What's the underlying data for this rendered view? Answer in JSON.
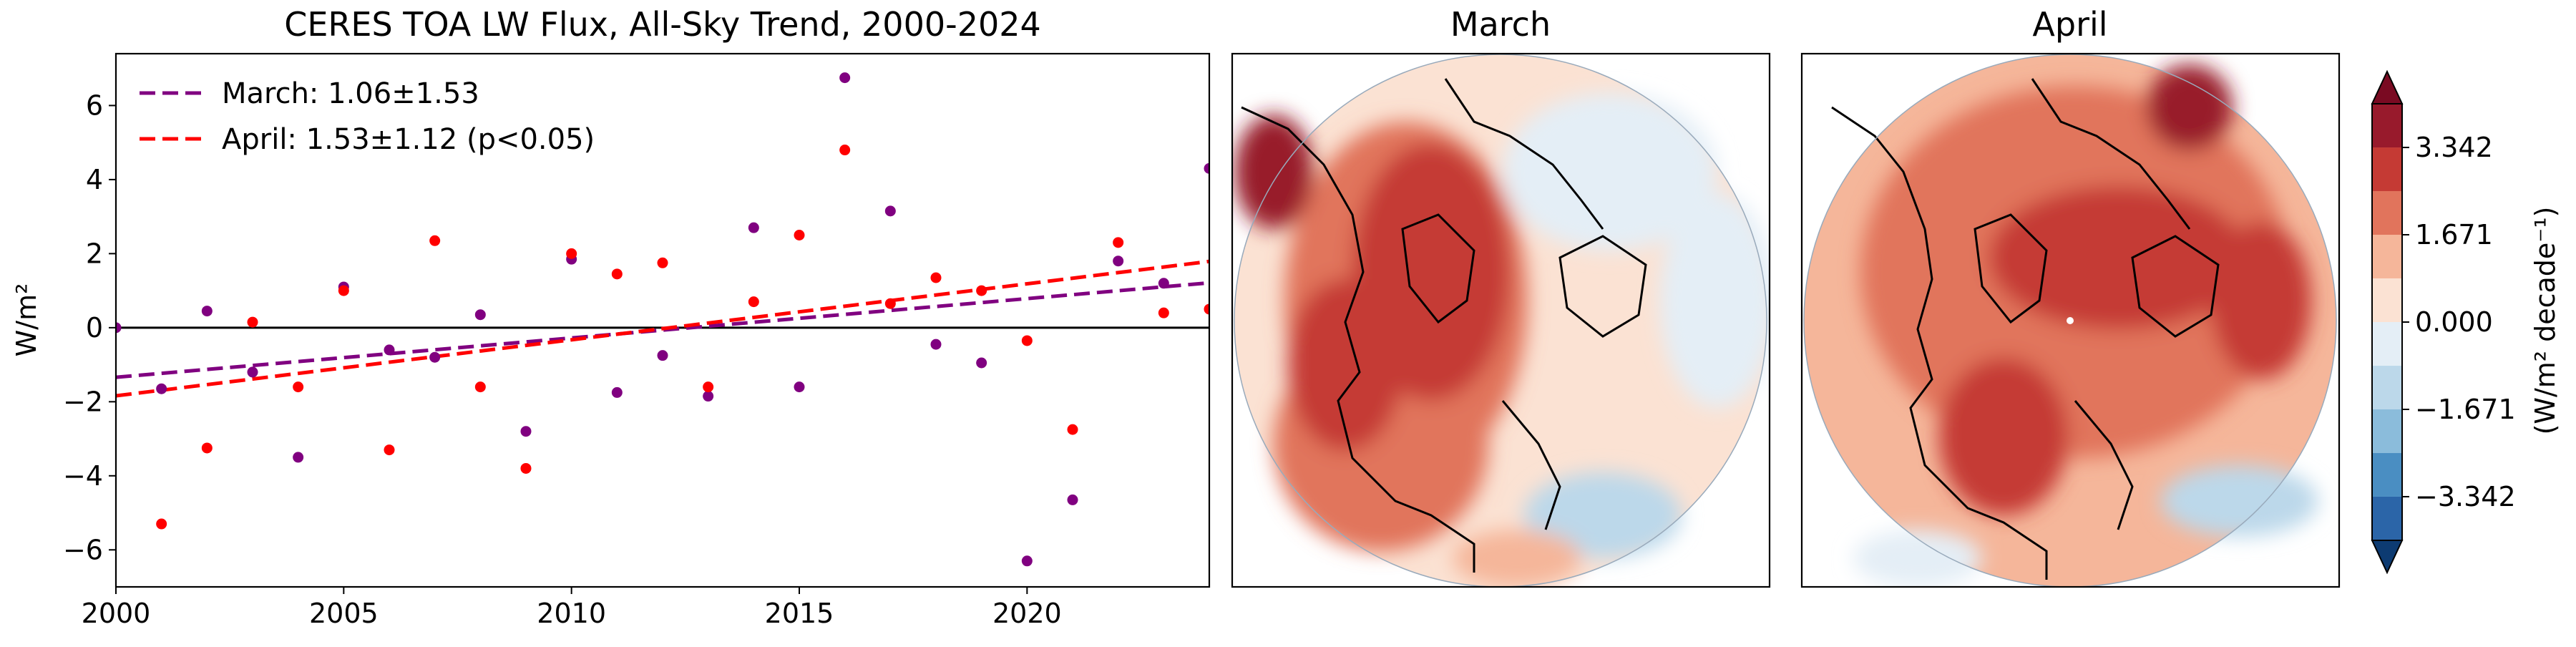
{
  "chart_data": [
    {
      "type": "scatter",
      "title": "CERES TOA LW Flux, All-Sky Trend, 2000-2024",
      "xlabel": "",
      "ylabel": "W/m²",
      "xlim": [
        2000,
        2024
      ],
      "ylim": [
        -7,
        7.4
      ],
      "xticks": [
        2000,
        2005,
        2010,
        2015,
        2020
      ],
      "yticks": [
        -6,
        -4,
        -2,
        0,
        2,
        4,
        6
      ],
      "grid": false,
      "legend_position": "top-left",
      "x": [
        2000,
        2001,
        2002,
        2003,
        2004,
        2005,
        2006,
        2007,
        2008,
        2009,
        2010,
        2011,
        2012,
        2013,
        2014,
        2015,
        2016,
        2017,
        2018,
        2019,
        2020,
        2021,
        2022,
        2023,
        2024
      ],
      "series": [
        {
          "name": "March: 1.06±1.53",
          "color": "#800080",
          "values": [
            0.0,
            -1.65,
            0.45,
            -1.2,
            -3.5,
            1.1,
            -0.6,
            -0.8,
            0.35,
            -2.8,
            1.85,
            -1.75,
            -0.75,
            -1.85,
            2.7,
            -1.6,
            6.75,
            3.15,
            -0.45,
            -0.95,
            -6.3,
            -4.65,
            1.8,
            1.2,
            4.3
          ],
          "trend": {
            "start": -1.34,
            "end": 1.21,
            "style": "dashed"
          }
        },
        {
          "name": "April: 1.53±1.12 (p<0.05)",
          "color": "#ff0000",
          "values": [
            null,
            -5.3,
            -3.25,
            0.15,
            -1.6,
            1.0,
            -3.3,
            2.35,
            -1.6,
            -3.8,
            2.0,
            1.45,
            1.75,
            -1.6,
            0.7,
            2.5,
            4.8,
            0.65,
            1.35,
            1.0,
            -0.35,
            -2.75,
            2.3,
            0.4,
            0.5
          ],
          "trend": {
            "start": -1.84,
            "end": 1.79,
            "style": "dashed"
          }
        }
      ],
      "zero_line": 0
    },
    {
      "type": "heatmap",
      "title": "March",
      "projection": "north polar stereographic"
    },
    {
      "type": "heatmap",
      "title": "April",
      "projection": "north polar stereographic"
    },
    {
      "type": "colorbar",
      "label": "(W/m² decade⁻¹)",
      "ticks": [
        "3.342",
        "1.671",
        "0.000",
        "−1.671",
        "−3.342"
      ],
      "levels": [
        -4.178,
        -3.342,
        -2.507,
        -1.671,
        -0.836,
        0.0,
        0.836,
        1.671,
        2.507,
        3.342,
        4.178
      ],
      "colors": [
        "#2b65a8",
        "#4a8ec2",
        "#8bbcdb",
        "#bcd8ea",
        "#e4eef6",
        "#fbe2d3",
        "#f5b69a",
        "#e1745c",
        "#c53a34",
        "#981a2c"
      ],
      "extend_colors": {
        "low": "#0d3b72",
        "high": "#7a0a22"
      }
    }
  ]
}
